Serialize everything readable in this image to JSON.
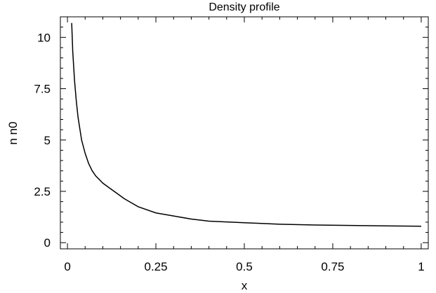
{
  "chart_data": {
    "type": "line",
    "title": "Density profile",
    "xlabel": "x",
    "ylabel": "n n0",
    "xlim": [
      -0.02,
      1.02
    ],
    "ylim": [
      -0.3,
      11.0
    ],
    "x_ticks": [
      0,
      0.25,
      0.5,
      0.75,
      1
    ],
    "x_tick_labels": [
      "0",
      "0.25",
      "0.5",
      "0.75",
      "1"
    ],
    "y_ticks": [
      0,
      2.5,
      5,
      7.5,
      10
    ],
    "y_tick_labels": [
      "0",
      "2.5",
      "5",
      "7.5",
      "10"
    ],
    "grid": false,
    "series": [
      {
        "color": "#000000",
        "x": [
          0.012,
          0.015,
          0.02,
          0.025,
          0.03,
          0.04,
          0.05,
          0.06,
          0.07,
          0.08,
          0.1,
          0.12,
          0.14,
          0.16,
          0.18,
          0.2,
          0.25,
          0.3,
          0.35,
          0.4,
          0.5,
          0.6,
          0.7,
          0.8,
          0.9,
          1.0
        ],
        "y": [
          10.7,
          9.3,
          7.9,
          6.9,
          6.1,
          5.0,
          4.35,
          3.85,
          3.5,
          3.25,
          2.9,
          2.65,
          2.4,
          2.15,
          1.95,
          1.75,
          1.45,
          1.3,
          1.15,
          1.05,
          0.97,
          0.9,
          0.86,
          0.84,
          0.82,
          0.8
        ]
      }
    ]
  }
}
